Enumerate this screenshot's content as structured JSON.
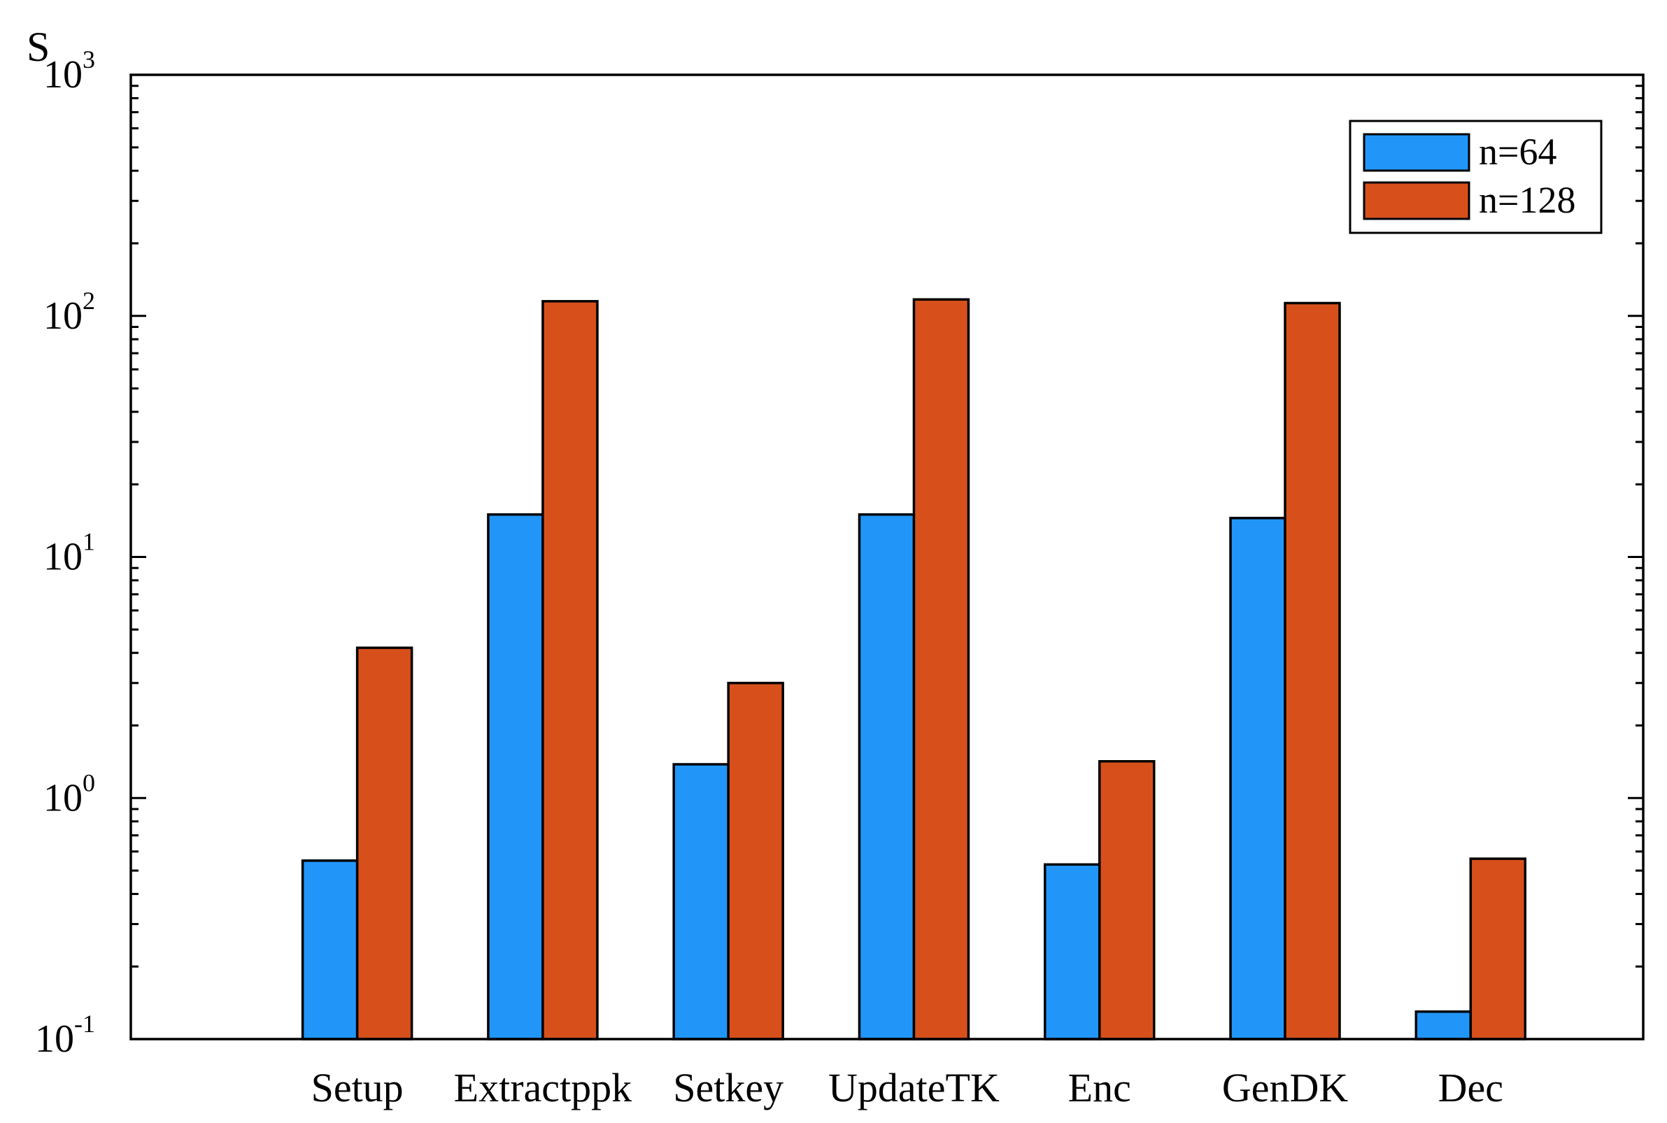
{
  "chart_data": {
    "type": "bar",
    "scale": "log",
    "ylabel": "S",
    "ylim": [
      0.1,
      1000
    ],
    "yticks": [
      {
        "base": "10",
        "exp": "-1",
        "value": 0.1
      },
      {
        "base": "10",
        "exp": "0",
        "value": 1
      },
      {
        "base": "10",
        "exp": "1",
        "value": 10
      },
      {
        "base": "10",
        "exp": "2",
        "value": 100
      },
      {
        "base": "10",
        "exp": "3",
        "value": 1000
      }
    ],
    "categories": [
      "Setup",
      "Extractppk",
      "Setkey",
      "UpdateTK",
      "Enc",
      "GenDK",
      "Dec"
    ],
    "series": [
      {
        "name": "n=64",
        "color": "#2196F8",
        "values": [
          0.55,
          15,
          1.38,
          15,
          0.53,
          14.5,
          0.13
        ]
      },
      {
        "name": "n=128",
        "color": "#D7501C",
        "values": [
          4.2,
          115,
          3.0,
          117,
          1.42,
          113,
          0.56
        ]
      }
    ],
    "legend_position": "top-right",
    "grid": false
  }
}
